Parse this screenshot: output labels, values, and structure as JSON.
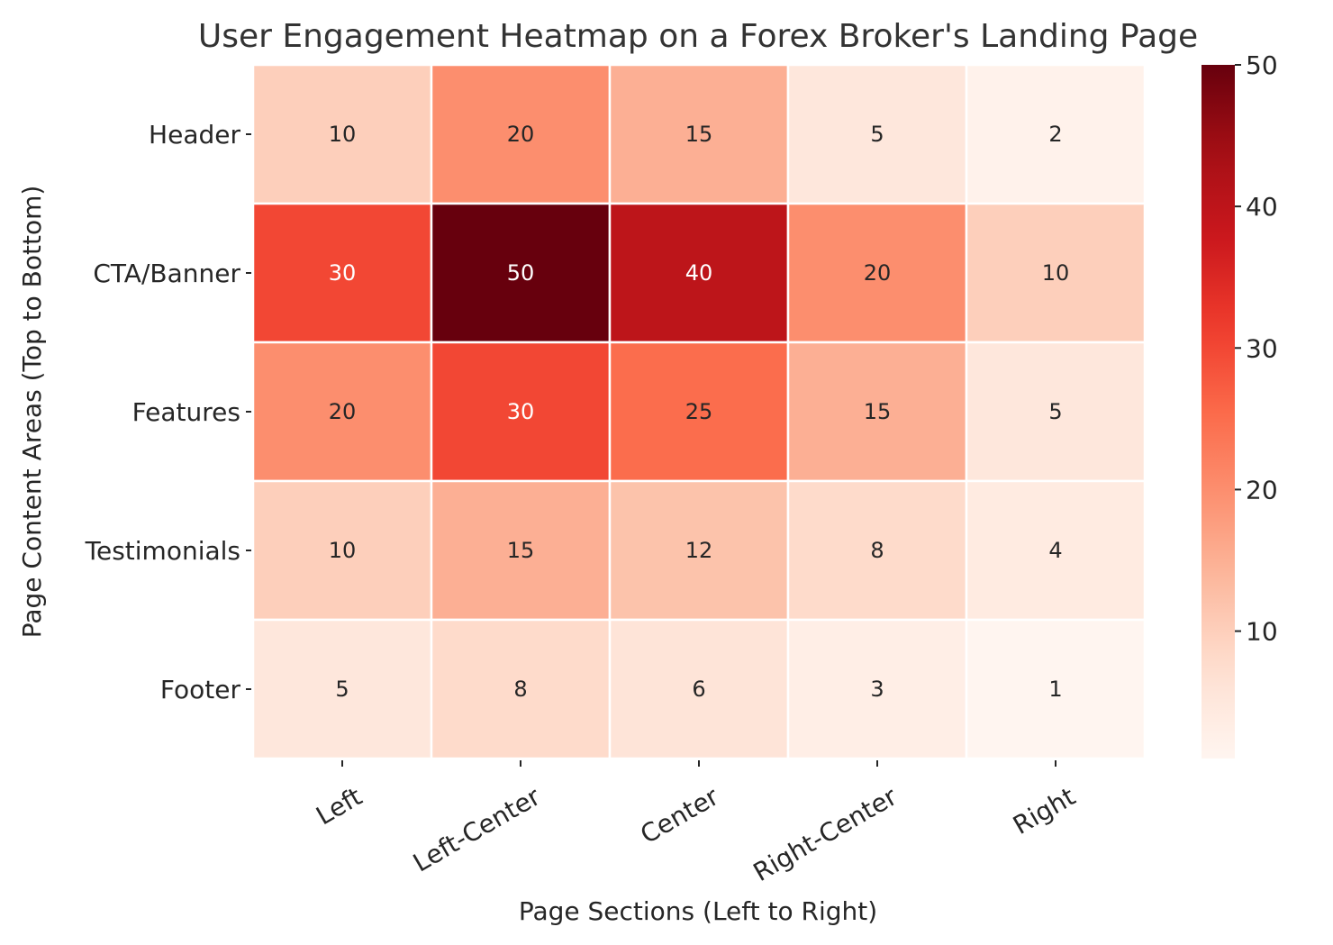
{
  "chart_data": {
    "type": "heatmap",
    "title": "User Engagement Heatmap on a Forex Broker's Landing Page",
    "xlabel": "Page Sections (Left to Right)",
    "ylabel": "Page Content Areas (Top to Bottom)",
    "x_categories": [
      "Left",
      "Left-Center",
      "Center",
      "Right-Center",
      "Right"
    ],
    "y_categories": [
      "Header",
      "CTA/Banner",
      "Features",
      "Testimonials",
      "Footer"
    ],
    "values": [
      [
        10,
        20,
        15,
        5,
        2
      ],
      [
        30,
        50,
        40,
        20,
        10
      ],
      [
        20,
        30,
        25,
        15,
        5
      ],
      [
        10,
        15,
        12,
        8,
        4
      ],
      [
        5,
        8,
        6,
        3,
        1
      ]
    ],
    "annotated": true,
    "colormap": "Reds",
    "colorbar": {
      "min": 1,
      "max": 50,
      "ticks": [
        10,
        20,
        30,
        40,
        50
      ]
    },
    "colors": {
      "cell_border": "#ffffff",
      "text_dark": "#262626",
      "text_light": "#ffffff"
    }
  }
}
